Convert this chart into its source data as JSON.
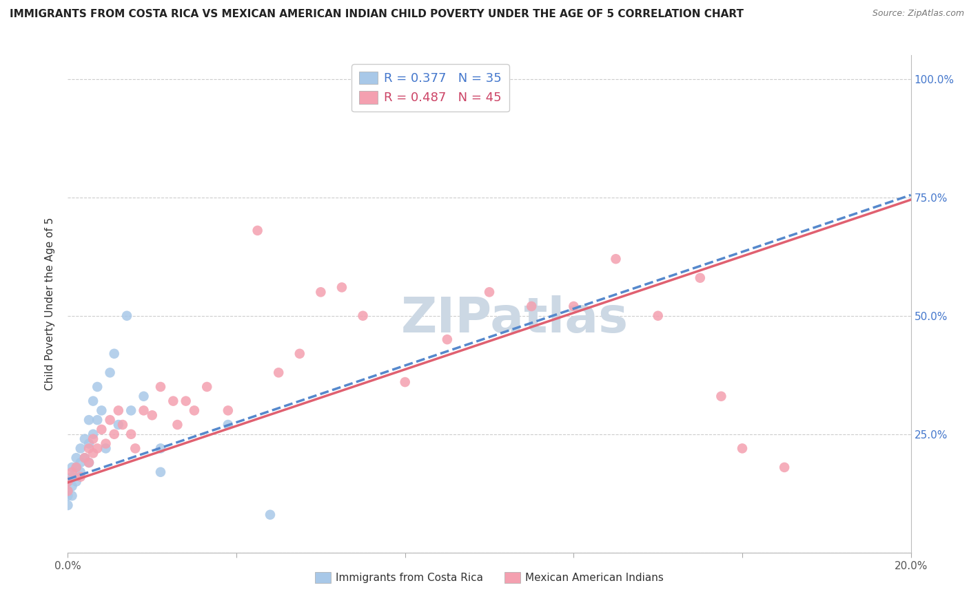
{
  "title": "IMMIGRANTS FROM COSTA RICA VS MEXICAN AMERICAN INDIAN CHILD POVERTY UNDER THE AGE OF 5 CORRELATION CHART",
  "source": "Source: ZipAtlas.com",
  "ylabel": "Child Poverty Under the Age of 5",
  "watermark": "ZIPatlas",
  "series1_label": "Immigrants from Costa Rica",
  "series2_label": "Mexican American Indians",
  "series1_color": "#a8c8e8",
  "series2_color": "#f4a0b0",
  "trendline1_color": "#5588cc",
  "trendline2_color": "#e06070",
  "R1": 0.377,
  "N1": 35,
  "R2": 0.487,
  "N2": 45,
  "xmin": 0.0,
  "xmax": 0.2,
  "ymin": 0.0,
  "ymax": 1.05,
  "ytick_labels": [
    "",
    "25.0%",
    "50.0%",
    "75.0%",
    "100.0%"
  ],
  "ytick_values": [
    0.0,
    0.25,
    0.5,
    0.75,
    1.0
  ],
  "xtick_labels": [
    "0.0%",
    "",
    "",
    "",
    "",
    "20.0%"
  ],
  "xtick_values": [
    0.0,
    0.04,
    0.08,
    0.12,
    0.16,
    0.2
  ],
  "grid_color": "#cccccc",
  "series1_x": [
    0.0,
    0.0,
    0.0,
    0.0,
    0.001,
    0.001,
    0.001,
    0.001,
    0.002,
    0.002,
    0.002,
    0.003,
    0.003,
    0.003,
    0.004,
    0.004,
    0.005,
    0.005,
    0.005,
    0.006,
    0.006,
    0.007,
    0.007,
    0.008,
    0.009,
    0.01,
    0.011,
    0.012,
    0.014,
    0.015,
    0.018,
    0.022,
    0.022,
    0.038,
    0.048
  ],
  "series1_y": [
    0.15,
    0.13,
    0.12,
    0.1,
    0.18,
    0.16,
    0.14,
    0.12,
    0.2,
    0.18,
    0.15,
    0.22,
    0.19,
    0.17,
    0.24,
    0.2,
    0.28,
    0.23,
    0.19,
    0.32,
    0.25,
    0.35,
    0.28,
    0.3,
    0.22,
    0.38,
    0.42,
    0.27,
    0.5,
    0.3,
    0.33,
    0.22,
    0.17,
    0.27,
    0.08
  ],
  "series2_x": [
    0.0,
    0.0,
    0.001,
    0.002,
    0.003,
    0.004,
    0.005,
    0.005,
    0.006,
    0.006,
    0.007,
    0.008,
    0.009,
    0.01,
    0.011,
    0.012,
    0.013,
    0.015,
    0.016,
    0.018,
    0.02,
    0.022,
    0.025,
    0.026,
    0.028,
    0.03,
    0.033,
    0.038,
    0.045,
    0.05,
    0.055,
    0.06,
    0.065,
    0.07,
    0.08,
    0.09,
    0.1,
    0.11,
    0.12,
    0.13,
    0.14,
    0.15,
    0.155,
    0.16,
    0.17
  ],
  "series2_y": [
    0.15,
    0.13,
    0.17,
    0.18,
    0.16,
    0.2,
    0.22,
    0.19,
    0.24,
    0.21,
    0.22,
    0.26,
    0.23,
    0.28,
    0.25,
    0.3,
    0.27,
    0.25,
    0.22,
    0.3,
    0.29,
    0.35,
    0.32,
    0.27,
    0.32,
    0.3,
    0.35,
    0.3,
    0.68,
    0.38,
    0.42,
    0.55,
    0.56,
    0.5,
    0.36,
    0.45,
    0.55,
    0.52,
    0.52,
    0.62,
    0.5,
    0.58,
    0.33,
    0.22,
    0.18
  ],
  "trendline1_x0": 0.0,
  "trendline1_x1": 0.2,
  "trendline1_y0": 0.155,
  "trendline1_y1": 0.755,
  "trendline2_x0": 0.0,
  "trendline2_x1": 0.2,
  "trendline2_y0": 0.148,
  "trendline2_y1": 0.745,
  "background_color": "#ffffff",
  "title_fontsize": 11,
  "axis_label_fontsize": 11,
  "tick_fontsize": 11,
  "legend_fontsize": 13,
  "watermark_fontsize": 52,
  "watermark_color": "#ccd8e4",
  "right_tick_color": "#4477cc",
  "legend_text_color1": "#4477cc",
  "legend_text_color2": "#cc4466"
}
